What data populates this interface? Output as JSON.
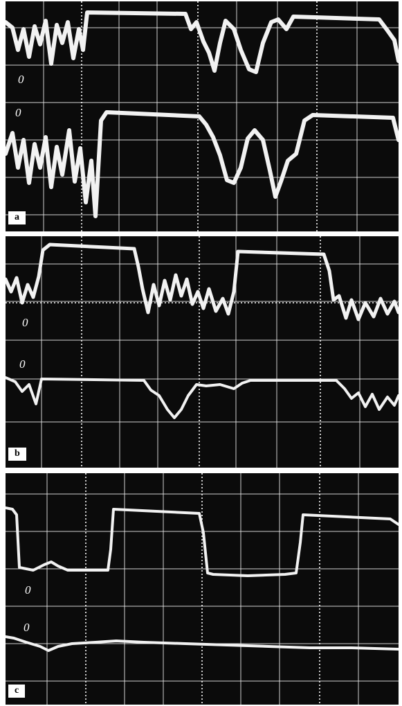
{
  "panels": [
    {
      "id": "a",
      "label": "a",
      "zero_marks": [
        "0",
        "0"
      ]
    },
    {
      "id": "b",
      "label": "b",
      "zero_marks": [
        "0",
        "0"
      ]
    },
    {
      "id": "c",
      "label": "c",
      "zero_marks": [
        "0",
        "0"
      ]
    }
  ],
  "colors": {
    "screen": "#0b0b0b",
    "trace": "#f2f2f2",
    "grid": "#e8e8e8",
    "frame": "#ffffff"
  }
}
